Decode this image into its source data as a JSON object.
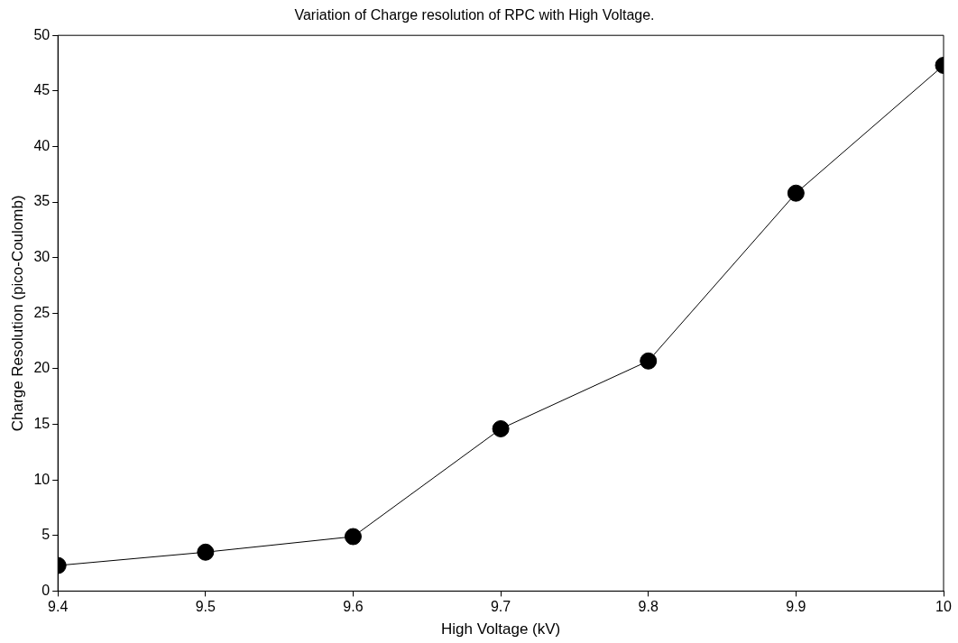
{
  "chart_data": {
    "type": "line",
    "title": "Variation of Charge resolution of RPC with High Voltage.",
    "xlabel": "High Voltage (kV)",
    "ylabel": "Charge Resolution (pico-Coulomb)",
    "x": [
      9.4,
      9.5,
      9.6,
      9.7,
      9.8,
      9.9,
      10
    ],
    "series": [
      {
        "color": "#000000",
        "values": [
          2.3,
          3.5,
          4.9,
          14.6,
          20.7,
          35.8,
          47.3
        ]
      }
    ],
    "xlim": [
      9.4,
      10
    ],
    "xticks": [
      9.4,
      9.5,
      9.6,
      9.7,
      9.8,
      9.9,
      10
    ],
    "ylim": [
      0,
      50
    ],
    "yticks": [
      0,
      5,
      10,
      15,
      20,
      25,
      30,
      35,
      40,
      45,
      50
    ],
    "grid": false,
    "legend": false,
    "marker": "circle",
    "line_style": "solid"
  }
}
